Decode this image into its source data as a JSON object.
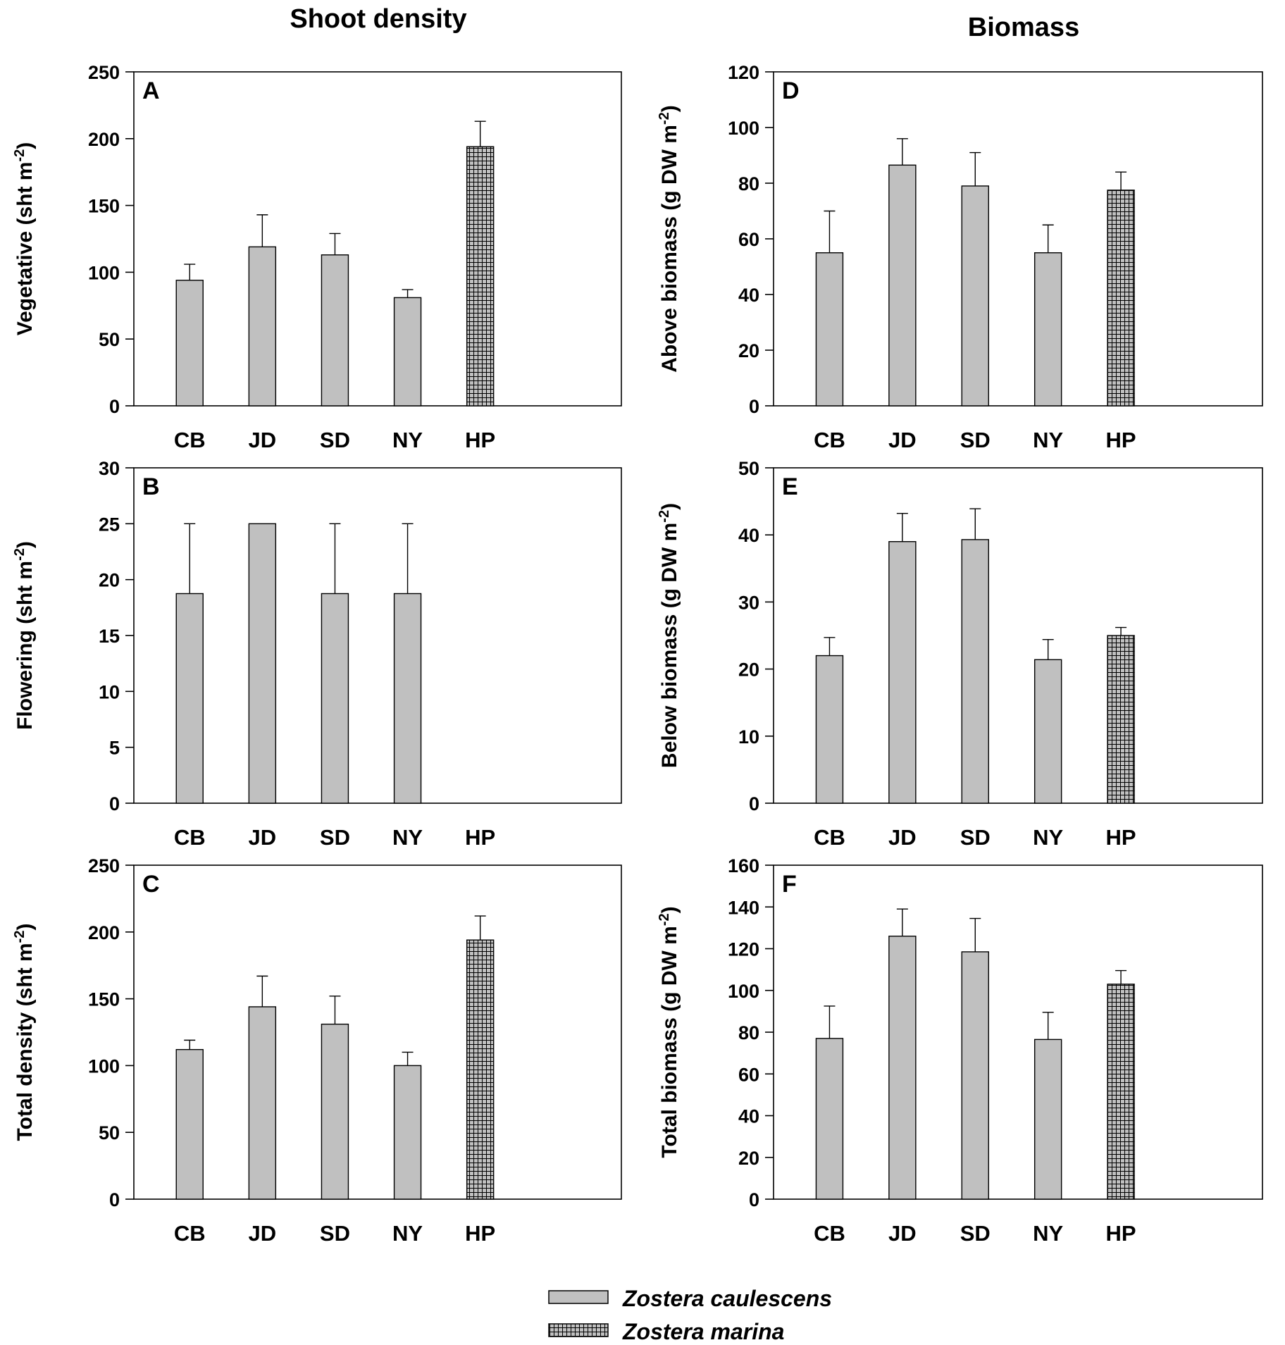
{
  "column_titles": [
    "Shoot density",
    "Biomass"
  ],
  "legend": {
    "items": [
      {
        "label": "Zostera caulescens",
        "pattern": "solid",
        "color": "#c0c0c0"
      },
      {
        "label": "Zostera marina",
        "pattern": "crosshatch",
        "color": "#c0c0c0"
      }
    ]
  },
  "colors": {
    "bar_fill": "#c0c0c0",
    "axis": "#000000",
    "hatch_line": "#000000"
  },
  "chart_data": [
    {
      "panel": "A",
      "type": "bar",
      "ylabel_main": "Vegetative (sht m",
      "ylabel_sup": "-2",
      "ylabel_end": ")",
      "categories": [
        "CB",
        "JD",
        "SD",
        "NY",
        "HP"
      ],
      "values": [
        94,
        119,
        113,
        81,
        194
      ],
      "errors": [
        12,
        24,
        16,
        6,
        19
      ],
      "species": [
        "caulescens",
        "caulescens",
        "caulescens",
        "caulescens",
        "marina"
      ],
      "ylim": [
        0,
        250
      ],
      "yticks": [
        0,
        50,
        100,
        150,
        200,
        250
      ]
    },
    {
      "panel": "B",
      "type": "bar",
      "ylabel_main": "Flowering (sht m",
      "ylabel_sup": "-2",
      "ylabel_end": ")",
      "categories": [
        "CB",
        "JD",
        "SD",
        "NY",
        "HP"
      ],
      "values": [
        18.75,
        25,
        18.75,
        18.75,
        null
      ],
      "errors": [
        6.25,
        0,
        6.25,
        6.25,
        null
      ],
      "species": [
        "caulescens",
        "caulescens",
        "caulescens",
        "caulescens",
        "marina"
      ],
      "ylim": [
        0,
        30
      ],
      "yticks": [
        0,
        5,
        10,
        15,
        20,
        25,
        30
      ]
    },
    {
      "panel": "C",
      "type": "bar",
      "ylabel_main": "Total density (sht m",
      "ylabel_sup": "-2",
      "ylabel_end": ")",
      "categories": [
        "CB",
        "JD",
        "SD",
        "NY",
        "HP"
      ],
      "values": [
        112,
        144,
        131,
        100,
        194
      ],
      "errors": [
        7,
        23,
        21,
        10,
        18
      ],
      "species": [
        "caulescens",
        "caulescens",
        "caulescens",
        "caulescens",
        "marina"
      ],
      "ylim": [
        0,
        250
      ],
      "yticks": [
        0,
        50,
        100,
        150,
        200,
        250
      ]
    },
    {
      "panel": "D",
      "type": "bar",
      "ylabel_main": "Above biomass  (g DW  m",
      "ylabel_sup": "-2",
      "ylabel_end": ")",
      "categories": [
        "CB",
        "JD",
        "SD",
        "NY",
        "HP"
      ],
      "values": [
        55,
        86.5,
        79,
        55,
        77.5
      ],
      "errors": [
        15,
        9.5,
        12,
        10,
        6.5
      ],
      "species": [
        "caulescens",
        "caulescens",
        "caulescens",
        "caulescens",
        "marina"
      ],
      "ylim": [
        0,
        120
      ],
      "yticks": [
        0,
        20,
        40,
        60,
        80,
        100,
        120
      ]
    },
    {
      "panel": "E",
      "type": "bar",
      "ylabel_main": "Below biomass (g DW m",
      "ylabel_sup": "-2",
      "ylabel_end": ")",
      "categories": [
        "CB",
        "JD",
        "SD",
        "NY",
        "HP"
      ],
      "values": [
        22,
        39,
        39.3,
        21.4,
        25
      ],
      "errors": [
        2.7,
        4.2,
        4.6,
        3,
        1.2
      ],
      "species": [
        "caulescens",
        "caulescens",
        "caulescens",
        "caulescens",
        "marina"
      ],
      "ylim": [
        0,
        50
      ],
      "yticks": [
        0,
        10,
        20,
        30,
        40,
        50
      ]
    },
    {
      "panel": "F",
      "type": "bar",
      "ylabel_main": "Total biomass (g DW m",
      "ylabel_sup": "-2",
      "ylabel_end": ")",
      "categories": [
        "CB",
        "JD",
        "SD",
        "NY",
        "HP"
      ],
      "values": [
        77,
        126,
        118.5,
        76.5,
        103
      ],
      "errors": [
        15.5,
        13,
        16,
        13,
        6.5
      ],
      "species": [
        "caulescens",
        "caulescens",
        "caulescens",
        "caulescens",
        "marina"
      ],
      "ylim": [
        0,
        160
      ],
      "yticks": [
        0,
        20,
        40,
        60,
        80,
        100,
        120,
        140,
        160
      ]
    }
  ]
}
